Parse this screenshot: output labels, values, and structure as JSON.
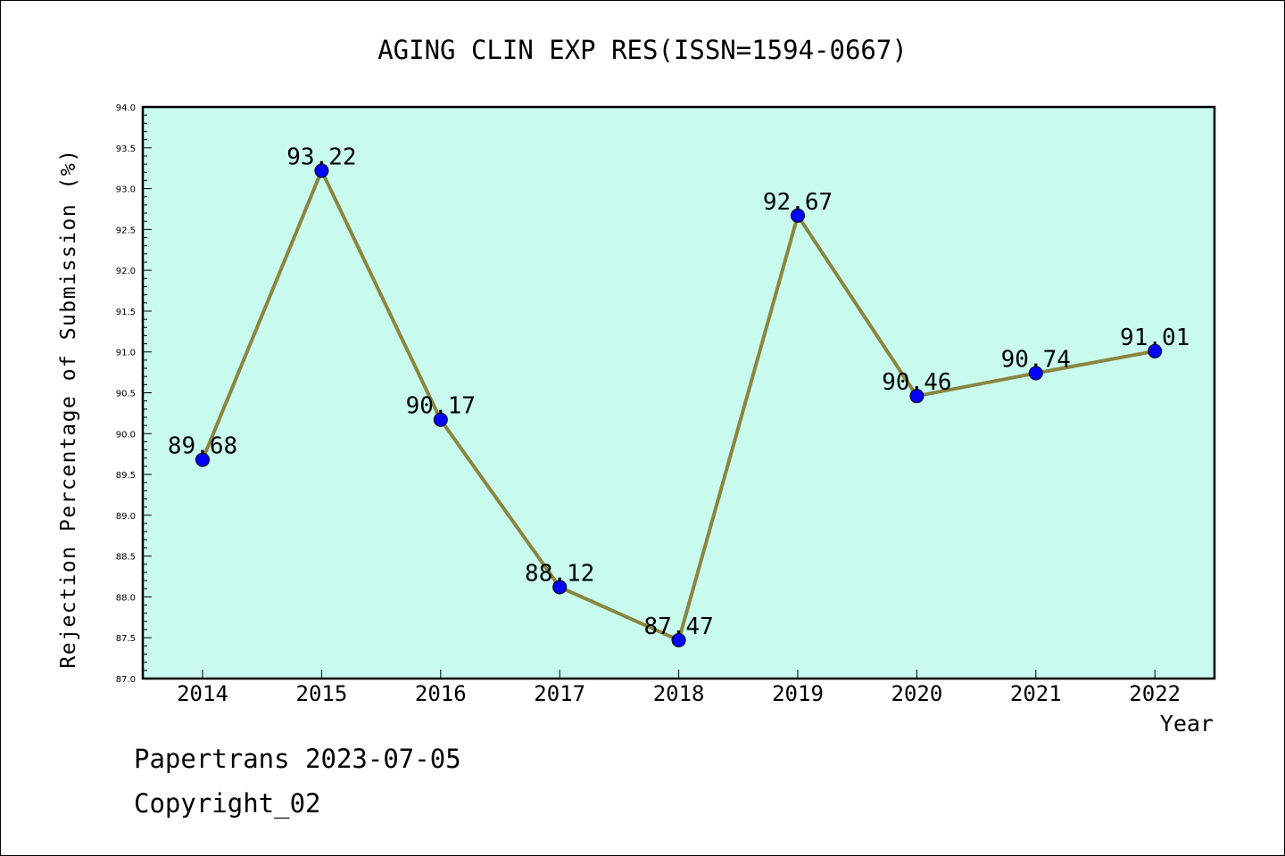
{
  "chart_data": {
    "type": "line",
    "title": "AGING CLIN EXP RES(ISSN=1594-0667)",
    "xlabel": "Year",
    "ylabel": "Rejection Percentage of Submission (%)",
    "categories": [
      "2014",
      "2015",
      "2016",
      "2017",
      "2018",
      "2019",
      "2020",
      "2021",
      "2022"
    ],
    "series": [
      {
        "values": [
          89.68,
          93.22,
          90.17,
          88.12,
          87.47,
          92.67,
          90.46,
          90.74,
          91.01
        ],
        "labels": [
          "89.68",
          "93.22",
          "90.17",
          "88.12",
          "87.47",
          "92.67",
          "90.46",
          "90.74",
          "91.01"
        ]
      }
    ],
    "ylim": [
      87.0,
      94.0
    ],
    "yticks": [
      "87.0",
      "87.5",
      "88.0",
      "88.5",
      "89.0",
      "89.5",
      "90.0",
      "90.5",
      "91.0",
      "91.5",
      "92.0",
      "92.5",
      "93.0",
      "93.5",
      "94.0"
    ],
    "grid": false,
    "colors": {
      "plot_background": "#c8fbee",
      "line": "#8b8540",
      "marker": "#0000ff"
    }
  },
  "footer": {
    "source": "Papertrans 2023-07-05",
    "copyright": "Copyright_02"
  }
}
